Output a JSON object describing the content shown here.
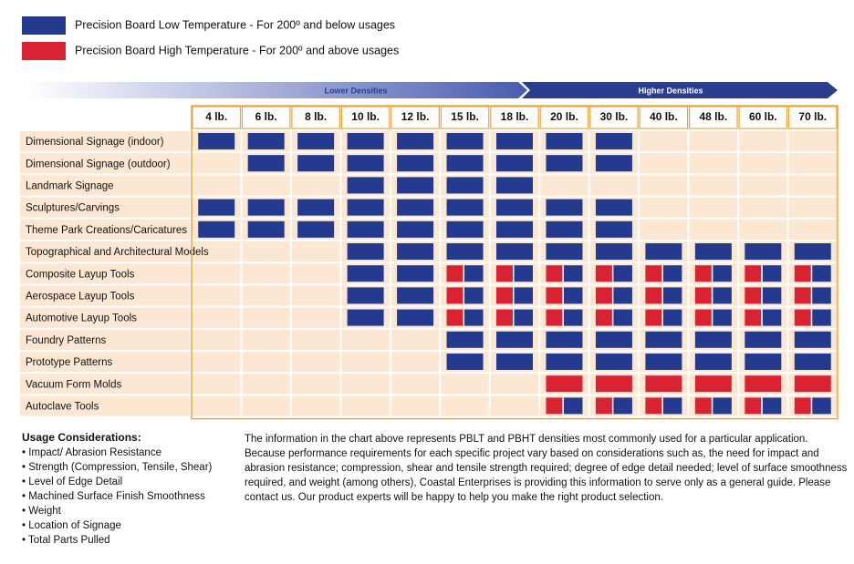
{
  "legend": [
    {
      "label": "Precision Board Low Temperature - For 200º and below usages",
      "color": "#233a8f"
    },
    {
      "label": "Precision Board High Temperature - For 200º and above usages",
      "color": "#d92332"
    }
  ],
  "arrows": {
    "lower": "Lower Densities",
    "higher": "Higher Densities"
  },
  "table": {
    "columns": [
      "4 lb.",
      "6 lb.",
      "8 lb.",
      "10 lb.",
      "12 lb.",
      "15 lb.",
      "18 lb.",
      "20 lb.",
      "30 lb.",
      "40 lb.",
      "48 lb.",
      "60 lb.",
      "70 lb."
    ],
    "rows": [
      {
        "label": "Dimensional Signage (indoor)",
        "cells": [
          "L",
          "L",
          "L",
          "L",
          "L",
          "L",
          "L",
          "L",
          "L",
          "",
          "",
          "",
          ""
        ]
      },
      {
        "label": "Dimensional Signage (outdoor)",
        "cells": [
          "",
          "L",
          "L",
          "L",
          "L",
          "L",
          "L",
          "L",
          "L",
          "",
          "",
          "",
          ""
        ]
      },
      {
        "label": "Landmark Signage",
        "cells": [
          "",
          "",
          "",
          "L",
          "L",
          "L",
          "L",
          "",
          "",
          "",
          "",
          "",
          ""
        ]
      },
      {
        "label": "Sculptures/Carvings",
        "cells": [
          "L",
          "L",
          "L",
          "L",
          "L",
          "L",
          "L",
          "L",
          "L",
          "",
          "",
          "",
          ""
        ]
      },
      {
        "label": "Theme Park Creations/Caricatures",
        "cells": [
          "L",
          "L",
          "L",
          "L",
          "L",
          "L",
          "L",
          "L",
          "L",
          "",
          "",
          "",
          ""
        ]
      },
      {
        "label": "Topographical and Architectural Models",
        "cells": [
          "",
          "",
          "",
          "L",
          "L",
          "L",
          "L",
          "L",
          "L",
          "L",
          "L",
          "L",
          "L"
        ]
      },
      {
        "label": "Composite Layup Tools",
        "cells": [
          "",
          "",
          "",
          "L",
          "L",
          "LH",
          "LH",
          "LH",
          "LH",
          "LH",
          "LH",
          "LH",
          "LH"
        ]
      },
      {
        "label": "Aerospace Layup Tools",
        "cells": [
          "",
          "",
          "",
          "L",
          "L",
          "LH",
          "LH",
          "LH",
          "LH",
          "LH",
          "LH",
          "LH",
          "LH"
        ]
      },
      {
        "label": "Automotive Layup Tools",
        "cells": [
          "",
          "",
          "",
          "L",
          "L",
          "LH",
          "LH",
          "LH",
          "LH",
          "LH",
          "LH",
          "LH",
          "LH"
        ]
      },
      {
        "label": "Foundry Patterns",
        "cells": [
          "",
          "",
          "",
          "",
          "",
          "L",
          "L",
          "L",
          "L",
          "L",
          "L",
          "L",
          "L"
        ]
      },
      {
        "label": "Prototype Patterns",
        "cells": [
          "",
          "",
          "",
          "",
          "",
          "L",
          "L",
          "L",
          "L",
          "L",
          "L",
          "L",
          "L"
        ]
      },
      {
        "label": "Vacuum Form Molds",
        "cells": [
          "",
          "",
          "",
          "",
          "",
          "",
          "",
          "H",
          "H",
          "H",
          "H",
          "H",
          "H"
        ]
      },
      {
        "label": "Autoclave Tools",
        "cells": [
          "",
          "",
          "",
          "",
          "",
          "",
          "",
          "LH",
          "LH",
          "LH",
          "LH",
          "LH",
          "LH"
        ]
      }
    ]
  },
  "usage": {
    "title": "Usage Considerations:",
    "items": [
      "• Impact/ Abrasion Resistance",
      "• Strength (Compression, Tensile, Shear)",
      "• Level of Edge Detail",
      "• Machined Surface Finish Smoothness",
      "• Weight",
      "• Location of Signage",
      "• Total Parts Pulled"
    ]
  },
  "note": "The information in the chart above represents PBLT and PBHT densities most commonly used for a particular application. Because performance requirements for each specific project vary based on considerations such as, the need for impact and abrasion resistance; compression, shear and tensile strength required; degree of edge detail needed; level of surface smoothness required, and weight (among others), Coastal Enterprises is providing this information to serve only as a general guide. Please contact us. Our product experts will be happy to help you make the right product selection."
}
